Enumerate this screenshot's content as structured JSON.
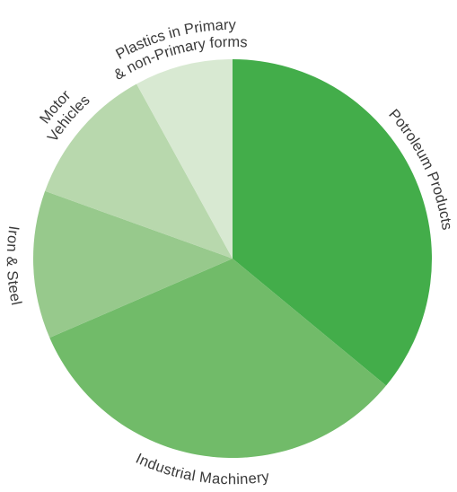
{
  "chart_data": {
    "type": "pie",
    "title": "",
    "categories": [
      "Potroleum Products",
      "Industrial Machinery",
      "Iron & Steel",
      "Motor Vehicles",
      "Plastics in Primary & non-Primary forms"
    ],
    "values": [
      36.0,
      32.5,
      12.0,
      11.5,
      8.0
    ],
    "colors": [
      "#43ad4a",
      "#71bb69",
      "#97c98c",
      "#b8d8ad",
      "#d8e9d2"
    ],
    "labels": [
      {
        "lines": [
          "Potroleum Products"
        ]
      },
      {
        "lines": [
          "Industrial Machinery"
        ]
      },
      {
        "lines": [
          "Iron & Steel"
        ]
      },
      {
        "lines": [
          "Motor",
          "Vehicles"
        ]
      },
      {
        "lines": [
          "Plastics in Primary",
          "& non-Primary forms"
        ]
      }
    ],
    "start_angle_deg": 0,
    "direction": "clockwise",
    "legend": "none"
  }
}
